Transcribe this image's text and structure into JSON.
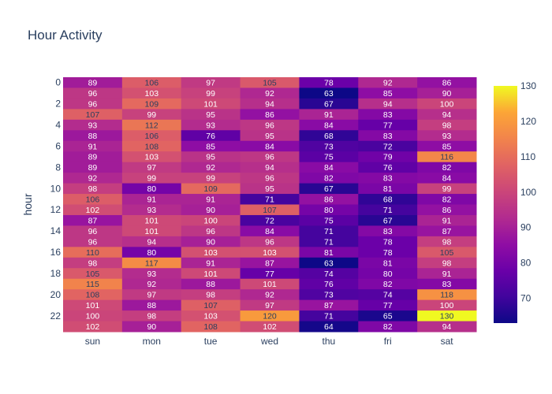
{
  "chart_data": {
    "type": "heatmap",
    "title": "Hour Activity",
    "xlabel": "",
    "ylabel": "hour",
    "x": [
      "sun",
      "mon",
      "tue",
      "wed",
      "thu",
      "fri",
      "sat"
    ],
    "y": [
      0,
      1,
      2,
      3,
      4,
      5,
      6,
      7,
      8,
      9,
      10,
      11,
      12,
      13,
      14,
      15,
      16,
      17,
      18,
      19,
      20,
      21,
      22,
      23
    ],
    "y_tick_labels": [
      "0",
      "2",
      "4",
      "6",
      "8",
      "10",
      "12",
      "14",
      "16",
      "18",
      "20",
      "22"
    ],
    "z": [
      [
        89,
        106,
        97,
        105,
        78,
        92,
        86
      ],
      [
        96,
        103,
        99,
        92,
        63,
        85,
        90
      ],
      [
        96,
        109,
        101,
        94,
        67,
        94,
        100
      ],
      [
        107,
        99,
        95,
        86,
        91,
        83,
        94
      ],
      [
        93,
        112,
        93,
        96,
        84,
        77,
        98
      ],
      [
        88,
        106,
        76,
        95,
        68,
        83,
        93
      ],
      [
        91,
        108,
        85,
        84,
        73,
        72,
        85
      ],
      [
        89,
        103,
        95,
        96,
        75,
        79,
        116
      ],
      [
        89,
        97,
        92,
        94,
        84,
        76,
        82
      ],
      [
        92,
        99,
        99,
        96,
        82,
        83,
        84
      ],
      [
        98,
        80,
        109,
        95,
        67,
        81,
        99
      ],
      [
        106,
        91,
        91,
        71,
        86,
        68,
        82
      ],
      [
        102,
        93,
        90,
        107,
        80,
        71,
        86
      ],
      [
        87,
        101,
        100,
        72,
        75,
        67,
        91
      ],
      [
        96,
        101,
        96,
        84,
        71,
        83,
        87
      ],
      [
        96,
        94,
        90,
        96,
        71,
        78,
        98
      ],
      [
        110,
        80,
        103,
        103,
        81,
        78,
        105
      ],
      [
        98,
        117,
        91,
        87,
        63,
        81,
        98
      ],
      [
        105,
        93,
        101,
        77,
        74,
        80,
        91
      ],
      [
        115,
        92,
        88,
        101,
        76,
        82,
        83
      ],
      [
        108,
        97,
        98,
        92,
        73,
        74,
        118
      ],
      [
        101,
        88,
        107,
        97,
        87,
        77,
        100
      ],
      [
        100,
        98,
        103,
        120,
        71,
        65,
        130
      ],
      [
        102,
        90,
        108,
        102,
        64,
        82,
        94
      ]
    ],
    "y_axis_reversed": true,
    "colorscale": "plasma",
    "zmin": 63,
    "zmax": 130,
    "colorbar_ticks": [
      70,
      80,
      90,
      100,
      110,
      120,
      130
    ],
    "colorbar_tick_labels": [
      "70",
      "80",
      "90",
      "100",
      "110",
      "120",
      "130"
    ]
  }
}
